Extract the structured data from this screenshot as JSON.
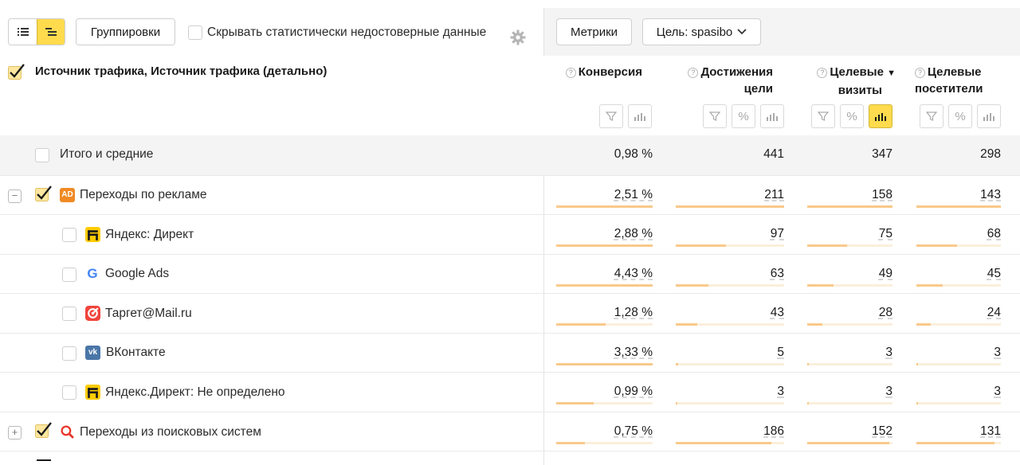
{
  "toolbar": {
    "groupings_label": "Группировки",
    "hide_unreliable_label": "Скрывать статистически недостоверные данные",
    "metrics_label": "Метрики",
    "goal_label": "Цель: spasibo"
  },
  "table": {
    "dimension_title": "Источник трафика, Источник трафика (детально)",
    "columns": [
      {
        "label_line1": "Конверсия",
        "label_line2": ""
      },
      {
        "label_line1": "Достижения",
        "label_line2": "цели"
      },
      {
        "label_line1": "Целевые",
        "label_line2": "визиты",
        "sorted": "▼"
      },
      {
        "label_line1": "Целевые",
        "label_line2": "посетители"
      }
    ],
    "rows": [
      {
        "label": "Итого и средние",
        "values": [
          "0,98 %",
          "441",
          "347",
          "298"
        ],
        "fills": [
          0,
          0,
          0,
          0
        ]
      },
      {
        "label": "Переходы по рекламе",
        "values": [
          "2,51 %",
          "211",
          "158",
          "143"
        ],
        "fills": [
          1,
          1,
          1,
          1
        ]
      },
      {
        "label": "Яндекс: Директ",
        "values": [
          "2,88 %",
          "97",
          "75",
          "68"
        ],
        "fills": [
          1,
          0.46,
          0.47,
          0.48
        ]
      },
      {
        "label": "Google Ads",
        "values": [
          "4,43 %",
          "63",
          "49",
          "45"
        ],
        "fills": [
          1,
          0.3,
          0.31,
          0.31
        ]
      },
      {
        "label": "Таргет@Mail.ru",
        "values": [
          "1,28 %",
          "43",
          "28",
          "24"
        ],
        "fills": [
          0.51,
          0.2,
          0.18,
          0.17
        ]
      },
      {
        "label": "ВКонтакте",
        "values": [
          "3,33 %",
          "5",
          "3",
          "3"
        ],
        "fills": [
          1,
          0.02,
          0.02,
          0.02
        ]
      },
      {
        "label": "Яндекс.Директ: Не определено",
        "values": [
          "0,99 %",
          "3",
          "3",
          "3"
        ],
        "fills": [
          0.39,
          0.01,
          0.02,
          0.02
        ]
      },
      {
        "label": "Переходы из поисковых систем",
        "values": [
          "0,75 %",
          "186",
          "152",
          "131"
        ],
        "fills": [
          0.3,
          0.88,
          0.96,
          0.92
        ]
      }
    ]
  },
  "colors": {
    "accent": "#ffdb4d",
    "bar_fill": "#f9c98b",
    "bar_track": "#fbefdc",
    "ad_badge": "#f08a24",
    "google_blue": "#4285f4",
    "mailru_red": "#f0443c",
    "vk_blue": "#4a76a8",
    "search_red": "#e8372b"
  }
}
